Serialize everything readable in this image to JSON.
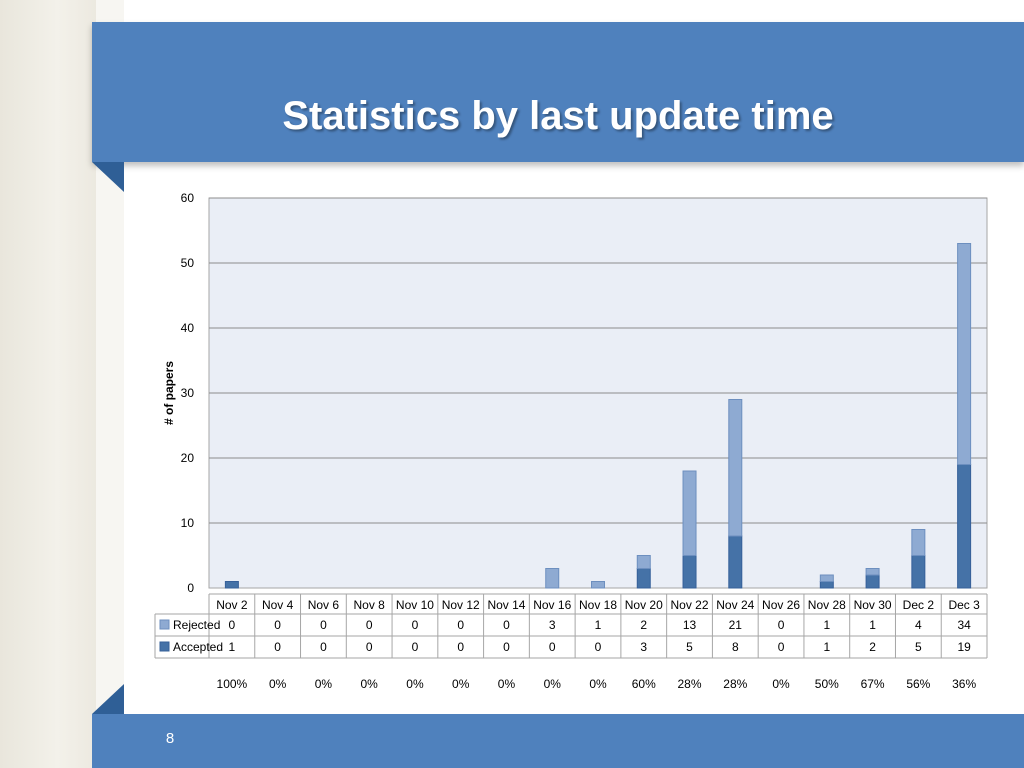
{
  "slide": {
    "title": "Statistics by last update time",
    "page_number": "8"
  },
  "colors": {
    "accepted": "#4572a7",
    "rejected": "#8eaad2",
    "plot_bg": "#eaeef6",
    "grid": "#8c8c8c",
    "header_bar": "#4f81bd"
  },
  "chart_data": {
    "type": "bar",
    "stacked": true,
    "categories": [
      "Nov 2",
      "Nov 4",
      "Nov 6",
      "Nov 8",
      "Nov 10",
      "Nov 12",
      "Nov 14",
      "Nov 16",
      "Nov 18",
      "Nov 20",
      "Nov 22",
      "Nov 24",
      "Nov 26",
      "Nov 28",
      "Nov 30",
      "Dec 2",
      "Dec 3"
    ],
    "series": [
      {
        "name": "Rejected",
        "values": [
          0,
          0,
          0,
          0,
          0,
          0,
          0,
          3,
          1,
          2,
          13,
          21,
          0,
          1,
          1,
          4,
          34
        ]
      },
      {
        "name": "Accepted",
        "values": [
          1,
          0,
          0,
          0,
          0,
          0,
          0,
          0,
          0,
          3,
          5,
          8,
          0,
          1,
          2,
          5,
          19
        ]
      }
    ],
    "ylabel": "# of papers",
    "ylim": [
      0,
      60
    ],
    "yticks": [
      0,
      10,
      20,
      30,
      40,
      50,
      60
    ],
    "grid": true,
    "data_table": true,
    "acceptance_rates": [
      "100%",
      "0%",
      "0%",
      "0%",
      "0%",
      "0%",
      "0%",
      "0%",
      "0%",
      "60%",
      "28%",
      "28%",
      "0%",
      "50%",
      "67%",
      "56%",
      "36%"
    ]
  }
}
